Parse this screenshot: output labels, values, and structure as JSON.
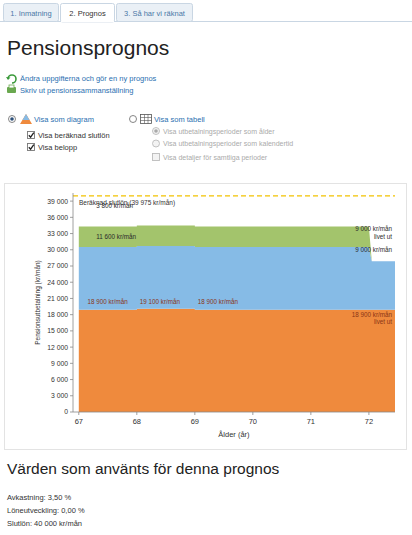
{
  "tabs": [
    {
      "label": "1. Inmatning",
      "active": false
    },
    {
      "label": "2. Prognos",
      "active": true
    },
    {
      "label": "3. Så har vi räknat",
      "active": false
    }
  ],
  "header": {
    "title": "Pensionsprognos"
  },
  "links": [
    "Ändra uppgifterna och gör en ny prognos",
    "Skriv ut pensionssammanställning"
  ],
  "options": {
    "diagram": {
      "label": "Visa som diagram",
      "selected": true,
      "checkboxes": [
        {
          "label": "Visa beräknad slutlön",
          "checked": true
        },
        {
          "label": "Visa belopp",
          "checked": true
        }
      ]
    },
    "table": {
      "label": "Visa som tabell",
      "selected": false,
      "radios": [
        {
          "label": "Visa utbetalningsperioder som ålder",
          "selected": true,
          "disabled": true
        },
        {
          "label": "Visa utbetalningsperioder som kalendertid",
          "selected": false,
          "disabled": true
        }
      ],
      "checkboxes": [
        {
          "label": "Visa detaljer för samtliga perioder",
          "checked": false,
          "disabled": true
        }
      ]
    }
  },
  "chart_data": {
    "type": "area",
    "stacked": true,
    "grid": false,
    "x_label": "Ålder (år)",
    "y_label": "Pensionsutbetalning (kr/mån)",
    "x": [
      67,
      68,
      68,
      69,
      69,
      72,
      72.05,
      72.45
    ],
    "xlim": [
      66.9,
      72.45
    ],
    "xticks": [
      67,
      68,
      69,
      70,
      71,
      72
    ],
    "ylim": [
      0,
      40500
    ],
    "yticks": [
      0,
      {
        "value": 3000,
        "label": "3 000"
      },
      {
        "value": 6000,
        "label": "6 000"
      },
      {
        "value": 9000,
        "label": "9 000"
      },
      {
        "value": 12000,
        "label": "12 000"
      },
      {
        "value": 15000,
        "label": "15 000"
      },
      {
        "value": 18000,
        "label": "18 000"
      },
      {
        "value": 21000,
        "label": "21 000"
      },
      {
        "value": 24000,
        "label": "24 000"
      },
      {
        "value": 27000,
        "label": "27 000"
      },
      {
        "value": 30000,
        "label": "30 000"
      },
      {
        "value": 33000,
        "label": "33 000"
      },
      {
        "value": 36000,
        "label": "36 000"
      },
      {
        "value": 39000,
        "label": "39 000"
      }
    ],
    "series": [
      {
        "color": "#ef8a3d",
        "values": [
          18900,
          18900,
          19100,
          19100,
          18900,
          18900,
          18900,
          18900
        ]
      },
      {
        "color": "#86bbe6",
        "values": [
          11600,
          11600,
          11600,
          11600,
          11600,
          11600,
          9000,
          9000
        ]
      },
      {
        "color": "#a3c46c",
        "values": [
          3800,
          3800,
          3800,
          3800,
          3800,
          3800,
          0,
          0
        ]
      }
    ],
    "reference_line": {
      "value": 39975,
      "label": "Beräknad slutlön (39 975 kr/mån)",
      "color": "#f2c200",
      "line_style": "dashed"
    },
    "annotations": [
      {
        "lines": [
          "3 800 kr/mån"
        ],
        "x": 67.3,
        "y": 37700
      },
      {
        "lines": [
          "11 600 kr/mån"
        ],
        "x": 67.3,
        "y": 32000
      },
      {
        "lines": [
          "18 900 kr/mån"
        ],
        "x": 67.15,
        "y": 19900
      },
      {
        "lines": [
          "19 100 kr/mån"
        ],
        "x": 68.05,
        "y": 19900
      },
      {
        "lines": [
          "18 900 kr/mån"
        ],
        "x": 69.05,
        "y": 19900
      },
      {
        "lines": [
          "9 000 kr/mån",
          "livet ut"
        ],
        "x": 72.4,
        "y": 33400
      },
      {
        "lines": [
          "9 000 kr/mån"
        ],
        "x": 72.4,
        "y": 29600
      },
      {
        "lines": [
          "18 900 kr/mån",
          "livet ut"
        ],
        "x": 72.4,
        "y": 17600
      }
    ]
  },
  "values_section": {
    "title": "Värden som använts för denna prognos",
    "rows": [
      "Avkastning: 3,50 %",
      "Löneutveckling: 0,00 %",
      "Slutlön: 40 000 kr/mån"
    ]
  }
}
